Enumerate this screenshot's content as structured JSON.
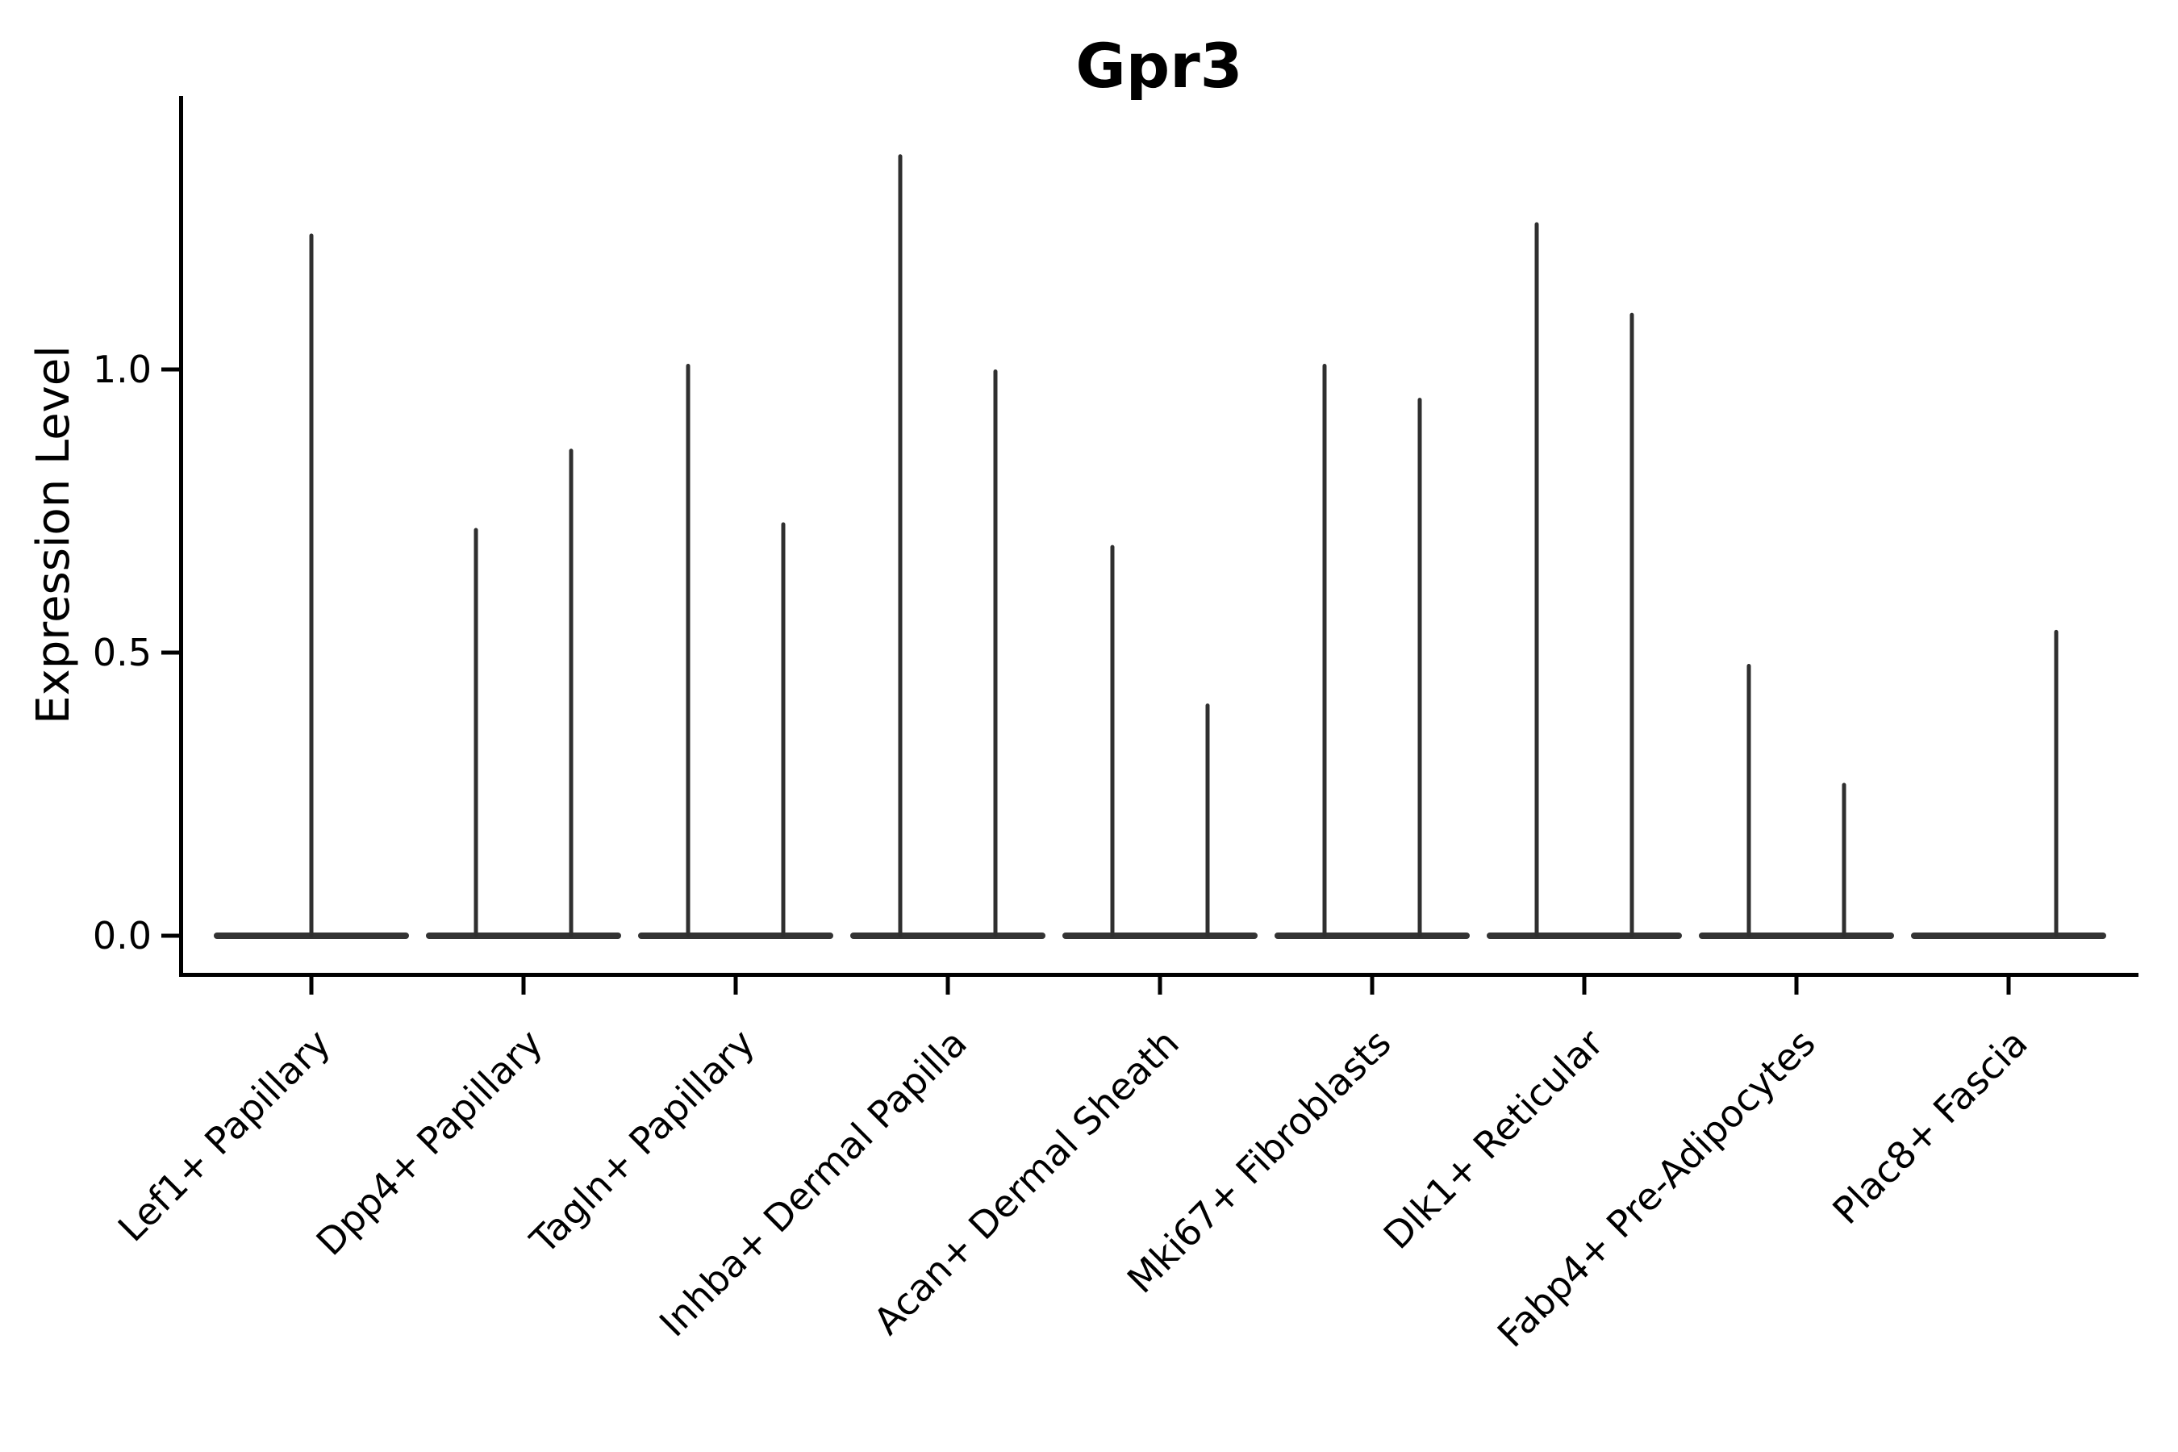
{
  "title": "Gpr3",
  "y_axis": {
    "label": "Expression Level",
    "tick_labels": [
      "0.0",
      "0.5",
      "1.0"
    ],
    "tick_values": [
      0.0,
      0.5,
      1.0
    ]
  },
  "x_axis": {
    "categories": [
      "Lef1+ Papillary",
      "Dpp4+ Papillary",
      "Tagln+ Papillary",
      "Inhba+ Dermal Papilla",
      "Acan+ Dermal Sheath",
      "Mki67+ Fibroblasts",
      "Dlk1+ Reticular",
      "Fabp4+ Pre-Adipocytes",
      "Plac8+ Fascia"
    ]
  },
  "colors": {
    "violin": "#333333",
    "spike": "#2f2f2f",
    "axis": "#000000",
    "text": "#000000",
    "background": "#ffffff"
  },
  "chart_data": {
    "type": "violin",
    "title": "Gpr3",
    "xlabel": "",
    "ylabel": "Expression Level",
    "categories": [
      "Lef1+ Papillary",
      "Dpp4+ Papillary",
      "Tagln+ Papillary",
      "Inhba+ Dermal Papilla",
      "Acan+ Dermal Sheath",
      "Mki67+ Fibroblasts",
      "Dlk1+ Reticular",
      "Fabp4+ Pre-Adipocytes",
      "Plac8+ Fascia"
    ],
    "y_ticks": [
      0.0,
      0.5,
      1.0
    ],
    "ylim": [
      -0.07,
      1.48
    ],
    "grid": false,
    "legend": false,
    "violin_style": "collapsed-thin-spikes-on-flat-zero-baseline",
    "violins": [
      {
        "category": "Lef1+ Papillary",
        "baseline_at_zero": true,
        "spikes": [
          {
            "position": "center",
            "max_expression": 1.24
          }
        ]
      },
      {
        "category": "Dpp4+ Papillary",
        "baseline_at_zero": true,
        "spikes": [
          {
            "position": "left",
            "max_expression": 0.72
          },
          {
            "position": "right",
            "max_expression": 0.86
          }
        ]
      },
      {
        "category": "Tagln+ Papillary",
        "baseline_at_zero": true,
        "spikes": [
          {
            "position": "left",
            "max_expression": 1.01
          },
          {
            "position": "right",
            "max_expression": 0.73
          }
        ]
      },
      {
        "category": "Inhba+ Dermal Papilla",
        "baseline_at_zero": true,
        "spikes": [
          {
            "position": "left",
            "max_expression": 1.38
          },
          {
            "position": "right",
            "max_expression": 1.0
          }
        ]
      },
      {
        "category": "Acan+ Dermal Sheath",
        "baseline_at_zero": true,
        "spikes": [
          {
            "position": "left",
            "max_expression": 0.69
          },
          {
            "position": "right",
            "max_expression": 0.41
          }
        ]
      },
      {
        "category": "Mki67+ Fibroblasts",
        "baseline_at_zero": true,
        "spikes": [
          {
            "position": "left",
            "max_expression": 1.01
          },
          {
            "position": "right",
            "max_expression": 0.95
          }
        ]
      },
      {
        "category": "Dlk1+ Reticular",
        "baseline_at_zero": true,
        "spikes": [
          {
            "position": "left",
            "max_expression": 1.26
          },
          {
            "position": "right",
            "max_expression": 1.1
          }
        ]
      },
      {
        "category": "Fabp4+ Pre-Adipocytes",
        "baseline_at_zero": true,
        "spikes": [
          {
            "position": "left",
            "max_expression": 0.48
          },
          {
            "position": "right",
            "max_expression": 0.27
          }
        ]
      },
      {
        "category": "Plac8+ Fascia",
        "baseline_at_zero": true,
        "spikes": [
          {
            "position": "right",
            "max_expression": 0.54
          }
        ]
      }
    ]
  }
}
